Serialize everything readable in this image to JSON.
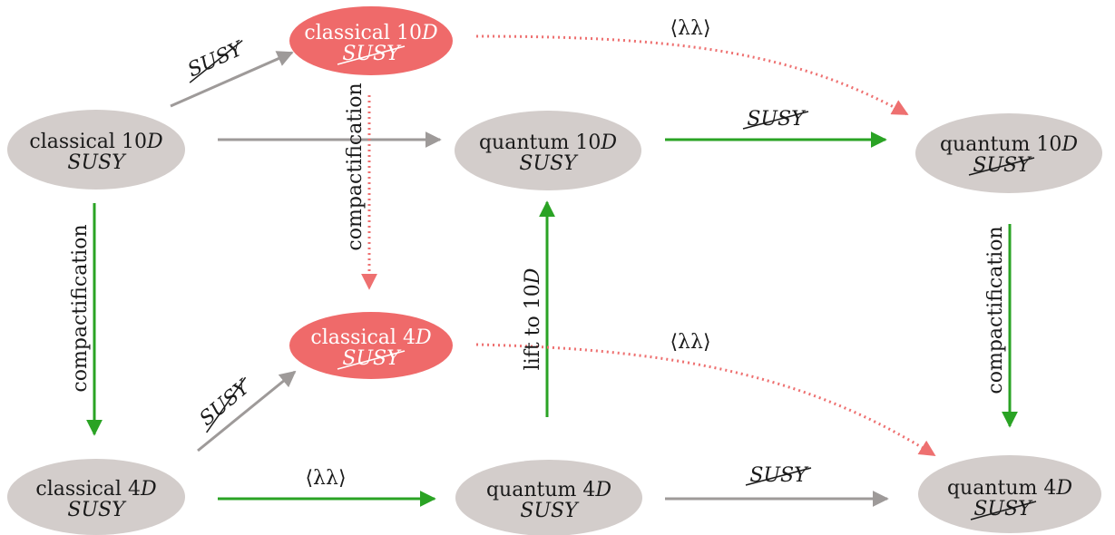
{
  "colors": {
    "node_gray": "#d3cdcb",
    "node_red": "#ef6a6a",
    "arrow_green": "#2aa324",
    "arrow_gray": "#9e9a99",
    "arrow_red_dotted": "#ee7070",
    "text_dark": "#1a1a1a",
    "text_white": "#ffffff"
  },
  "nodes": {
    "c10_susy": {
      "line1": "classical 10",
      "unit": "D",
      "line2": "SUSY",
      "broken": false,
      "fill": "gray"
    },
    "c10_nosusy": {
      "line1": "classical 10",
      "unit": "D",
      "line2": "SUSY",
      "broken": true,
      "fill": "red"
    },
    "q10_susy": {
      "line1": "quantum 10",
      "unit": "D",
      "line2": "SUSY",
      "broken": false,
      "fill": "gray"
    },
    "q10_nosusy": {
      "line1": "quantum 10",
      "unit": "D",
      "line2": "SUSY",
      "broken": true,
      "fill": "gray"
    },
    "c4_susy": {
      "line1": "classical 4",
      "unit": "D",
      "line2": "SUSY",
      "broken": false,
      "fill": "gray"
    },
    "c4_nosusy": {
      "line1": "classical 4",
      "unit": "D",
      "line2": "SUSY",
      "broken": true,
      "fill": "red"
    },
    "q4_susy": {
      "line1": "quantum 4",
      "unit": "D",
      "line2": "SUSY",
      "broken": false,
      "fill": "gray"
    },
    "q4_nosusy": {
      "line1": "quantum 4",
      "unit": "D",
      "line2": "SUSY",
      "broken": true,
      "fill": "gray"
    }
  },
  "edge_labels": {
    "break_susy": "SUSY",
    "gaugino": "⟨λλ⟩",
    "compactification": "compactification",
    "lift_prefix": "lift to 10",
    "lift_unit": "D"
  },
  "edges": [
    {
      "id": "c10-to-q10",
      "color": "gray",
      "style": "solid"
    },
    {
      "id": "q10-to-q10broken",
      "color": "green",
      "style": "solid"
    },
    {
      "id": "c10-to-c10broken",
      "color": "gray",
      "style": "solid"
    },
    {
      "id": "c10broken-to-q10broken",
      "color": "red",
      "style": "dotted"
    },
    {
      "id": "c10broken-to-c4broken",
      "color": "red",
      "style": "dotted"
    },
    {
      "id": "c10-to-c4",
      "color": "green",
      "style": "solid"
    },
    {
      "id": "q4-to-q10",
      "color": "green",
      "style": "solid"
    },
    {
      "id": "q10broken-to-q4broken",
      "color": "green",
      "style": "solid"
    },
    {
      "id": "c4-to-c4broken",
      "color": "gray",
      "style": "solid"
    },
    {
      "id": "c4-to-q4",
      "color": "green",
      "style": "solid"
    },
    {
      "id": "q4-to-q4broken",
      "color": "gray",
      "style": "solid"
    },
    {
      "id": "c4broken-to-q4broken",
      "color": "red",
      "style": "dotted"
    }
  ]
}
